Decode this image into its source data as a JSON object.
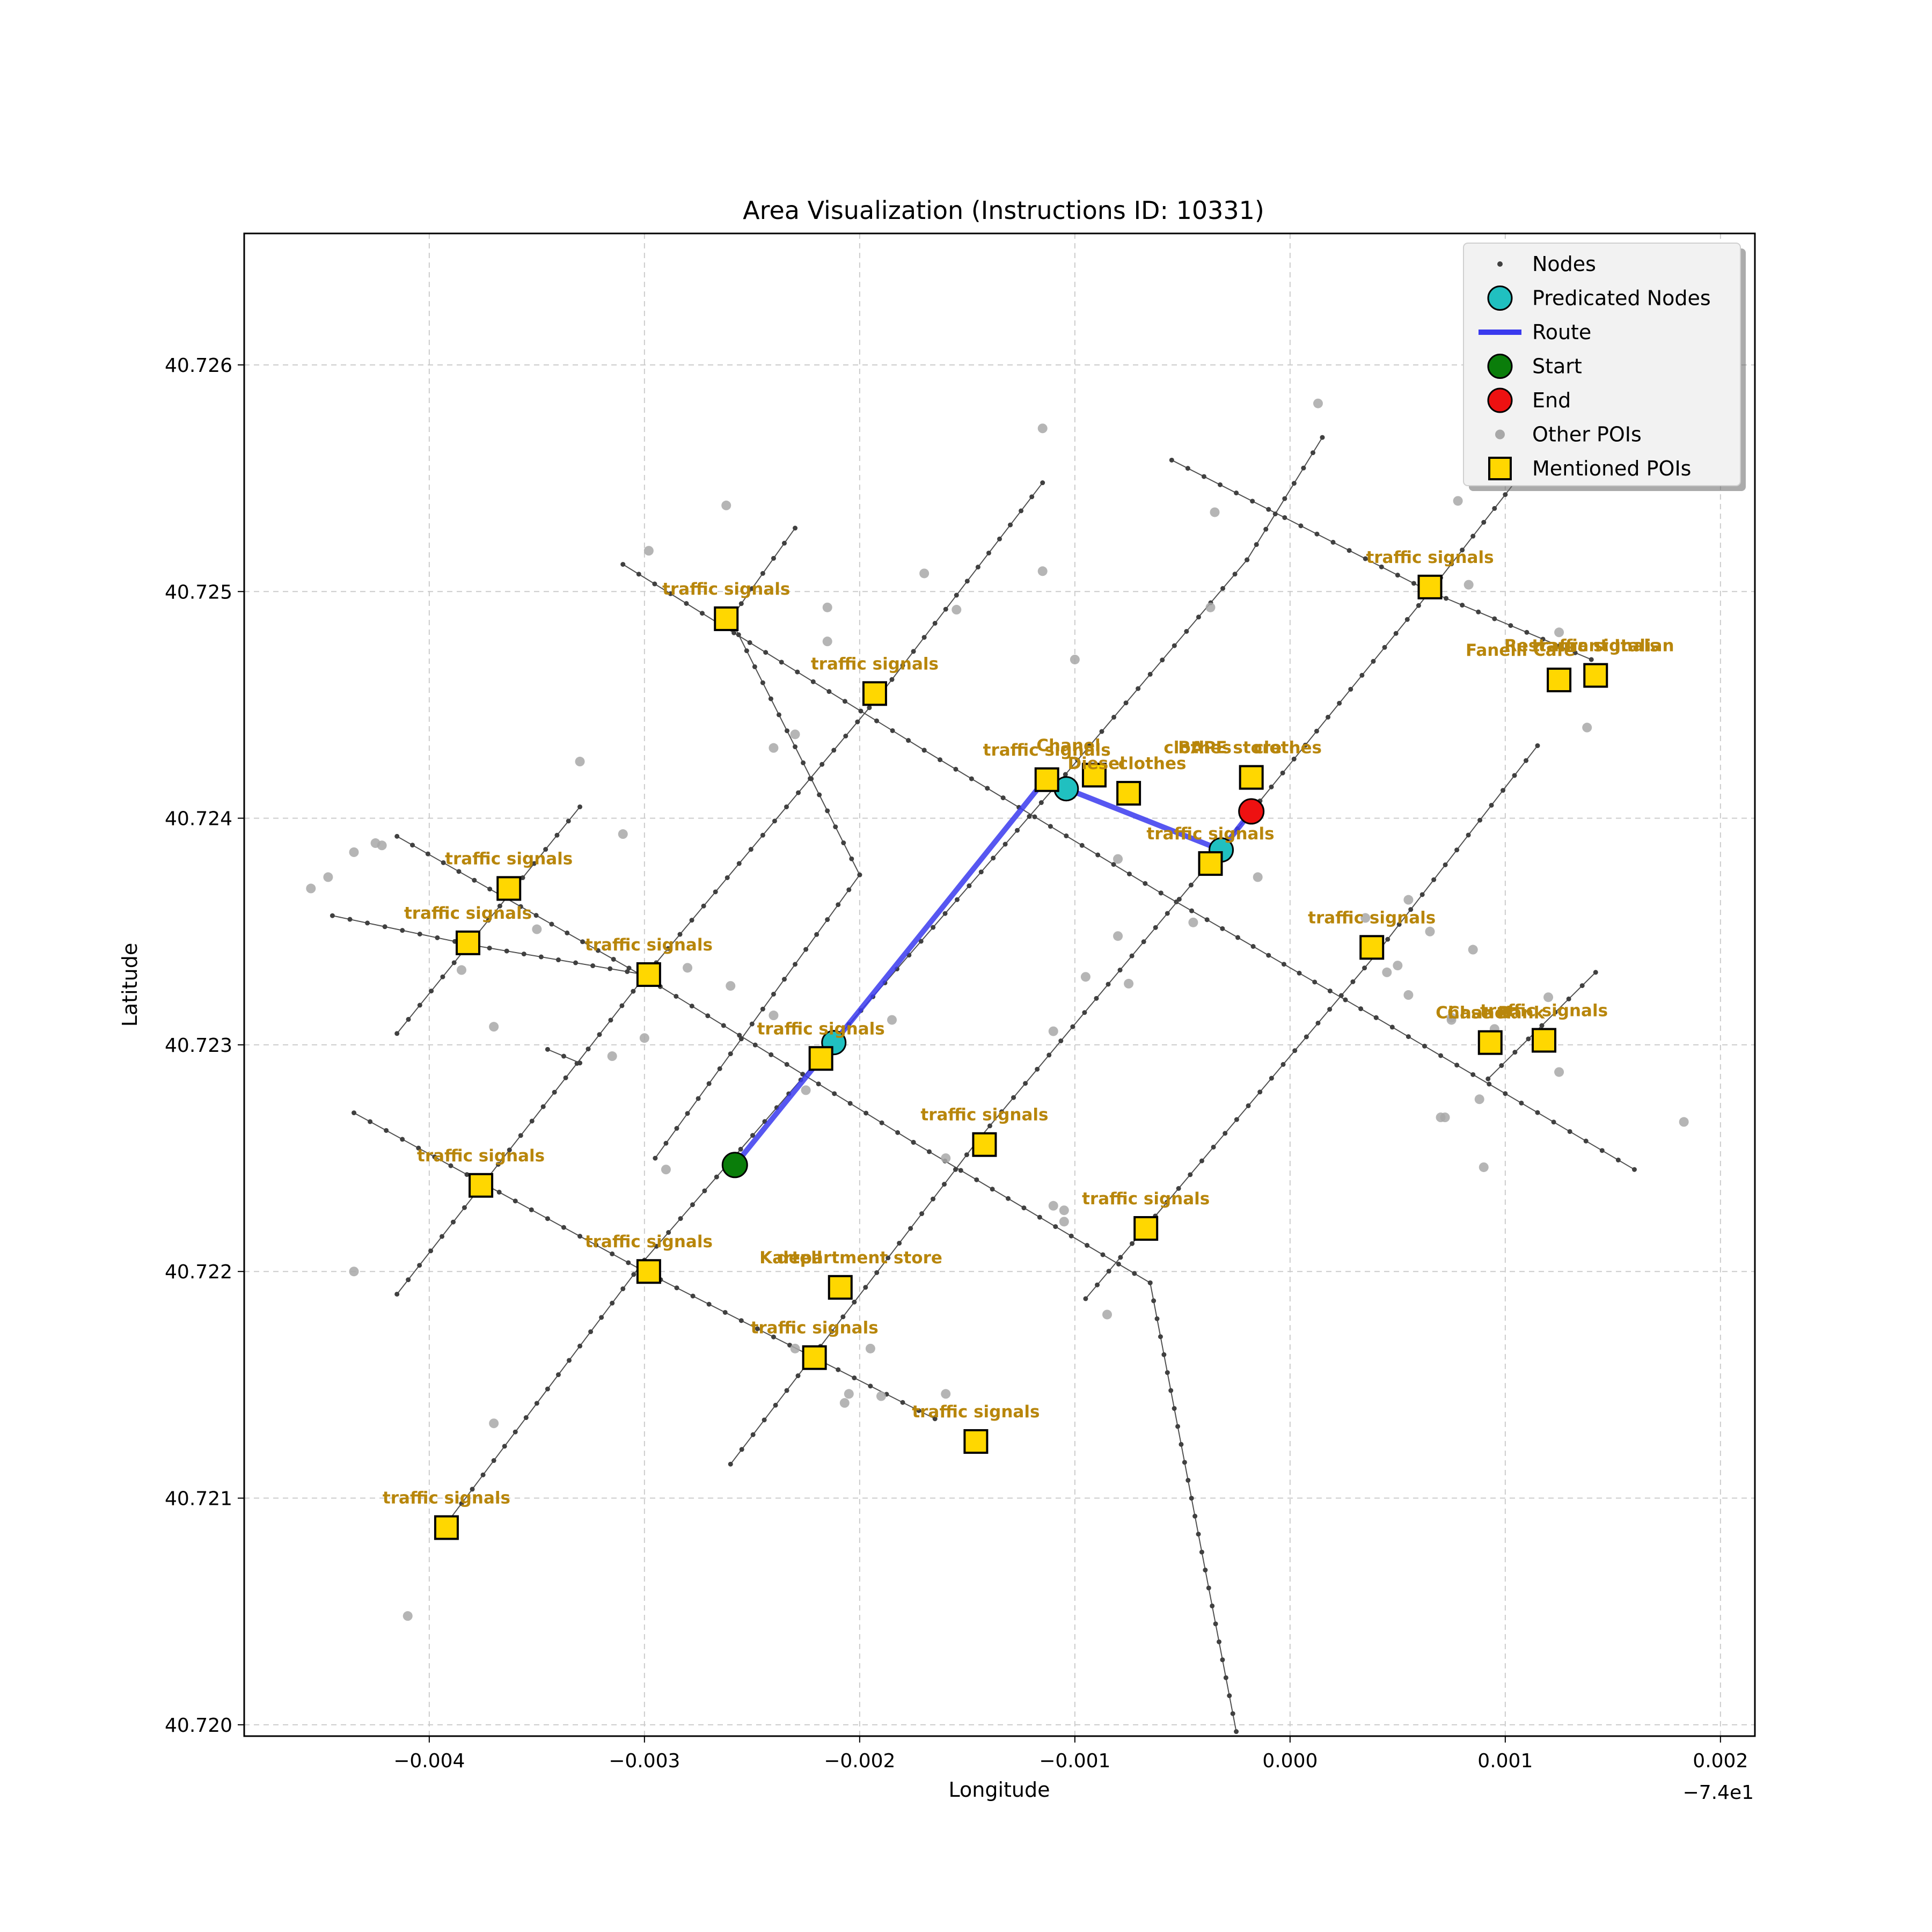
{
  "title": "Area Visualization (Instructions ID: 10331)",
  "xlabel": "Longitude",
  "ylabel": "Latitude",
  "x_offset_label": "−7.4e1",
  "x_ticks": [
    {
      "value": -0.004,
      "label": "−0.004"
    },
    {
      "value": -0.003,
      "label": "−0.003"
    },
    {
      "value": -0.002,
      "label": "−0.002"
    },
    {
      "value": -0.001,
      "label": "−0.001"
    },
    {
      "value": 0.0,
      "label": "0.000"
    },
    {
      "value": 0.001,
      "label": "0.001"
    },
    {
      "value": 0.002,
      "label": "0.002"
    }
  ],
  "y_ticks": [
    {
      "value": 40.72,
      "label": "40.720"
    },
    {
      "value": 40.721,
      "label": "40.721"
    },
    {
      "value": 40.722,
      "label": "40.722"
    },
    {
      "value": 40.723,
      "label": "40.723"
    },
    {
      "value": 40.724,
      "label": "40.724"
    },
    {
      "value": 40.725,
      "label": "40.725"
    },
    {
      "value": 40.726,
      "label": "40.726"
    }
  ],
  "legend": {
    "placement": "top-right",
    "items": [
      {
        "key": "nodes",
        "label": "Nodes"
      },
      {
        "key": "predicated",
        "label": "Predicated Nodes"
      },
      {
        "key": "route",
        "label": "Route"
      },
      {
        "key": "start",
        "label": "Start"
      },
      {
        "key": "end",
        "label": "End"
      },
      {
        "key": "other",
        "label": "Other POIs"
      },
      {
        "key": "mentioned",
        "label": "Mentioned POIs"
      }
    ]
  },
  "colors": {
    "node": "#404040",
    "edge": "#505050",
    "route": "#3a3aee",
    "predicated": "#20c0c0",
    "start": "#0a7d0a",
    "end": "#ee1111",
    "other_poi": "#a8a8a8",
    "mentioned_poi": "#ffd700",
    "poi_label": "#b8860b",
    "grid": "#cccccc"
  },
  "chart_data": {
    "type": "scatter",
    "xlim": [
      -0.00486,
      0.00216
    ],
    "ylim": [
      40.71995,
      40.72658
    ],
    "grid": true,
    "streets": [
      [
        [
          -0.0031,
          40.72512
        ],
        [
          -0.0017,
          40.7243
        ],
        [
          -0.0006,
          40.72367
        ],
        [
          0.0004,
          40.72312
        ],
        [
          0.0016,
          40.72245
        ]
      ],
      [
        [
          -0.00415,
          40.72392
        ],
        [
          -0.003,
          40.7233
        ],
        [
          -0.00175,
          40.72257
        ],
        [
          -0.00065,
          40.72195
        ],
        [
          -0.00025,
          40.71997
        ]
      ],
      [
        [
          -0.00445,
          40.72357
        ],
        [
          -0.0038,
          40.72344
        ],
        [
          -0.003,
          40.72331
        ]
      ],
      [
        [
          -0.00435,
          40.7227
        ],
        [
          -0.003,
          40.722
        ],
        [
          -0.00165,
          40.72135
        ]
      ],
      [
        [
          -0.00055,
          40.72558
        ],
        [
          0.00065,
          40.725
        ],
        [
          0.0014,
          40.7247
        ]
      ],
      [
        [
          -0.00395,
          40.72085
        ],
        [
          -0.003,
          40.72205
        ],
        [
          -0.0011,
          40.72413
        ],
        [
          -0.0002,
          40.72514
        ],
        [
          0.00015,
          40.72568
        ]
      ],
      [
        [
          -0.0026,
          40.72115
        ],
        [
          -0.00145,
          40.72258
        ],
        [
          -0.00035,
          40.72383
        ],
        [
          0.00065,
          40.725
        ],
        [
          0.0011,
          40.72555
        ]
      ],
      [
        [
          -0.00095,
          40.72188
        ],
        [
          0.0004,
          40.7234
        ],
        [
          0.00115,
          40.72432
        ]
      ],
      [
        [
          -0.00415,
          40.7219
        ],
        [
          -0.003,
          40.7233
        ],
        [
          -0.0019,
          40.72455
        ],
        [
          -0.00115,
          40.72548
        ]
      ],
      [
        [
          -0.00415,
          40.72305
        ],
        [
          -0.0033,
          40.72405
        ]
      ],
      [
        [
          -0.00295,
          40.7225
        ],
        [
          -0.002,
          40.72375
        ],
        [
          -0.0026,
          40.72488
        ],
        [
          -0.0023,
          40.72528
        ]
      ],
      [
        [
          0.00092,
          40.72285
        ],
        [
          0.00142,
          40.72332
        ]
      ],
      [
        [
          -0.00345,
          40.72298
        ],
        [
          -0.0033,
          40.72292
        ]
      ]
    ],
    "other_pois": [
      [
        -0.00262,
        40.72538
      ],
      [
        -0.00298,
        40.72518
      ],
      [
        -0.00115,
        40.72572
      ],
      [
        -0.00115,
        40.72509
      ],
      [
        -0.0017,
        40.72508
      ],
      [
        -0.00155,
        40.72492
      ],
      [
        -0.00215,
        40.72493
      ],
      [
        -0.00215,
        40.72478
      ],
      [
        -0.0023,
        40.72437
      ],
      [
        -0.0024,
        40.72431
      ],
      [
        -0.001,
        40.7247
      ],
      [
        -0.00035,
        40.72535
      ],
      [
        -0.00037,
        40.72493
      ],
      [
        0.00013,
        40.72583
      ],
      [
        0.00078,
        40.7254
      ],
      [
        0.00083,
        40.72503
      ],
      [
        0.00125,
        40.72482
      ],
      [
        0.00138,
        40.7244
      ],
      [
        -0.0033,
        40.72425
      ],
      [
        -0.0031,
        40.72393
      ],
      [
        -0.00455,
        40.72369
      ],
      [
        -0.00447,
        40.72374
      ],
      [
        -0.00435,
        40.72385
      ],
      [
        -0.00422,
        40.72388
      ],
      [
        -0.00425,
        40.72389
      ],
      [
        -0.0035,
        40.72351
      ],
      [
        -0.0037,
        40.72308
      ],
      [
        -0.00385,
        40.72333
      ],
      [
        -0.0028,
        40.72334
      ],
      [
        -0.0026,
        40.72326
      ],
      [
        -0.003,
        40.72303
      ],
      [
        -0.00315,
        40.72295
      ],
      [
        -0.0029,
        40.72245
      ],
      [
        -0.0024,
        40.72313
      ],
      [
        -0.00185,
        40.72311
      ],
      [
        -0.00225,
        40.7228
      ],
      [
        -0.0016,
        40.7225
      ],
      [
        -0.0011,
        40.72306
      ],
      [
        -0.0011,
        40.72229
      ],
      [
        -0.00105,
        40.72227
      ],
      [
        -0.00105,
        40.72222
      ],
      [
        -0.00095,
        40.7233
      ],
      [
        -0.0008,
        40.72348
      ],
      [
        -0.00075,
        40.72327
      ],
      [
        -0.0008,
        40.72382
      ],
      [
        -0.00045,
        40.72354
      ],
      [
        -0.00085,
        40.72181
      ],
      [
        -0.0023,
        40.72166
      ],
      [
        -0.00195,
        40.72166
      ],
      [
        -0.00205,
        40.72146
      ],
      [
        -0.00207,
        40.72142
      ],
      [
        -0.0019,
        40.72145
      ],
      [
        -0.0016,
        40.72146
      ],
      [
        -0.0041,
        40.72048
      ],
      [
        -0.0037,
        40.72133
      ],
      [
        -0.00435,
        40.722
      ],
      [
        -0.00015,
        40.72374
      ],
      [
        0.00055,
        40.72364
      ],
      [
        0.00035,
        40.72356
      ],
      [
        0.00065,
        40.7235
      ],
      [
        0.0005,
        40.72335
      ],
      [
        0.00085,
        40.72342
      ],
      [
        0.00075,
        40.72312
      ],
      [
        0.00055,
        40.72322
      ],
      [
        0.00045,
        40.72332
      ],
      [
        0.0009,
        40.72246
      ],
      [
        0.0007,
        40.72268
      ],
      [
        0.00072,
        40.72268
      ],
      [
        0.00088,
        40.72276
      ],
      [
        0.00075,
        40.72311
      ],
      [
        0.0012,
        40.72321
      ],
      [
        0.00125,
        40.72288
      ],
      [
        0.00183,
        40.72266
      ],
      [
        0.00095,
        40.72307
      ]
    ],
    "route": [
      [
        -0.00258,
        40.72247
      ],
      [
        -0.00212,
        40.72301
      ],
      [
        -0.00113,
        40.72418
      ],
      [
        -0.00104,
        40.72413
      ],
      [
        -0.00032,
        40.72386
      ],
      [
        -0.00018,
        40.72403
      ]
    ],
    "predicated_nodes": [
      [
        -0.00212,
        40.72301
      ],
      [
        -0.00104,
        40.72413
      ],
      [
        -0.00032,
        40.72386
      ]
    ],
    "start": [
      -0.00258,
      40.72247
    ],
    "end": [
      -0.00018,
      40.72403
    ],
    "mentioned_pois": [
      {
        "x": -0.00262,
        "y": 40.72488,
        "label": "traffic signals",
        "dx": 0,
        "dy": -1
      },
      {
        "x": -0.00193,
        "y": 40.72455,
        "label": "traffic signals",
        "dx": 0,
        "dy": -1
      },
      {
        "x": -0.00113,
        "y": 40.72417,
        "label": "traffic signals",
        "dx": 0,
        "dy": -1
      },
      {
        "x": -0.00091,
        "y": 40.72419,
        "label": "Chanel",
        "dx": -1.2,
        "dy": -1
      },
      {
        "x": -0.00075,
        "y": 40.72411,
        "label": "Diesel",
        "dx": -1.5,
        "dy": -1
      },
      {
        "x": -0.00018,
        "y": 40.72418,
        "label": "clothes",
        "dx": -2.5,
        "dy": -1
      },
      {
        "x": -0.00018,
        "y": 40.72418,
        "label": "BAPE store",
        "dx": -1,
        "dy": -1
      },
      {
        "x": -0.00018,
        "y": 40.72418,
        "label": "clothes",
        "dx": 1.7,
        "dy": -1
      },
      {
        "x": -0.00075,
        "y": 40.72411,
        "label": "clothes",
        "dx": 1.1,
        "dy": -1
      },
      {
        "x": -0.00037,
        "y": 40.7238,
        "label": "traffic signals",
        "dx": 0,
        "dy": -1
      },
      {
        "x": 0.00065,
        "y": 40.72502,
        "label": "traffic signals",
        "dx": 0,
        "dy": -1
      },
      {
        "x": 0.00125,
        "y": 40.72461,
        "label": "Fanelli Cafe",
        "dx": -1.8,
        "dy": -1
      },
      {
        "x": 0.00142,
        "y": 40.72463,
        "label": "traffic signals",
        "dx": 0,
        "dy": -1
      },
      {
        "x": 0.00142,
        "y": 40.72463,
        "label": "Restaurant Italian",
        "dx": -0.3,
        "dy": -1
      },
      {
        "x": -0.00363,
        "y": 40.72369,
        "label": "traffic signals",
        "dx": 0,
        "dy": -1
      },
      {
        "x": -0.00382,
        "y": 40.72345,
        "label": "traffic signals",
        "dx": 0,
        "dy": -1
      },
      {
        "x": -0.00298,
        "y": 40.72331,
        "label": "traffic signals",
        "dx": 0,
        "dy": -1
      },
      {
        "x": 0.00038,
        "y": 40.72343,
        "label": "traffic signals",
        "dx": 0,
        "dy": -1
      },
      {
        "x": -0.00218,
        "y": 40.72294,
        "label": "traffic signals",
        "dx": 0,
        "dy": -1
      },
      {
        "x": 0.00093,
        "y": 40.72301,
        "label": "Chanel",
        "dx": -0.5,
        "dy": -1
      },
      {
        "x": 0.00093,
        "y": 40.72301,
        "label": "Chase Bank",
        "dx": 0,
        "dy": -1
      },
      {
        "x": 0.00118,
        "y": 40.72302,
        "label": "traffic signals",
        "dx": 0,
        "dy": -1
      },
      {
        "x": -0.00142,
        "y": 40.72256,
        "label": "traffic signals",
        "dx": 0,
        "dy": -1
      },
      {
        "x": -0.00376,
        "y": 40.72238,
        "label": "traffic signals",
        "dx": 0,
        "dy": -1
      },
      {
        "x": -0.00067,
        "y": 40.72219,
        "label": "traffic signals",
        "dx": 0,
        "dy": -1
      },
      {
        "x": -0.00298,
        "y": 40.722,
        "label": "traffic signals",
        "dx": 0,
        "dy": -1
      },
      {
        "x": -0.00209,
        "y": 40.72193,
        "label": "Kartell",
        "dx": -2.3,
        "dy": -1
      },
      {
        "x": -0.00209,
        "y": 40.72193,
        "label": "department store",
        "dx": 0.9,
        "dy": -1
      },
      {
        "x": -0.00221,
        "y": 40.72162,
        "label": "traffic signals",
        "dx": 0,
        "dy": -1
      },
      {
        "x": -0.00146,
        "y": 40.72125,
        "label": "traffic signals",
        "dx": 0,
        "dy": -1
      },
      {
        "x": -0.00392,
        "y": 40.72087,
        "label": "traffic signals",
        "dx": 0,
        "dy": -1
      }
    ]
  }
}
